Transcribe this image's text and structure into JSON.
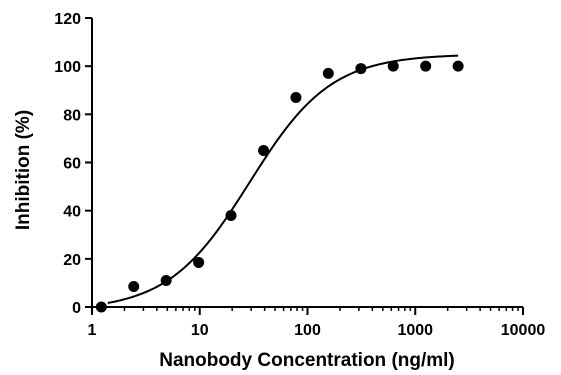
{
  "chart_data": {
    "type": "scatter",
    "title": "",
    "xlabel": "Nanobody Concentration (ng/ml)",
    "ylabel": "Inhibition (%)",
    "x_scale": "log",
    "xlim": [
      1,
      10000
    ],
    "ylim": [
      0,
      120
    ],
    "x_ticks": [
      1,
      10,
      100,
      1000,
      10000
    ],
    "x_tick_labels": [
      "1",
      "10",
      "100",
      "1000",
      "10000"
    ],
    "y_ticks": [
      0,
      20,
      40,
      60,
      80,
      100,
      120
    ],
    "y_tick_labels": [
      "0",
      "20",
      "40",
      "60",
      "80",
      "100",
      "120"
    ],
    "grid": false,
    "legend": "none",
    "colors": {
      "points": "#000000",
      "curve": "#000000",
      "axes": "#000000"
    },
    "series": [
      {
        "x": [
          1.22,
          2.44,
          4.88,
          9.77,
          19.5,
          39.1,
          78.1,
          156,
          313,
          625,
          1250,
          2500
        ],
        "y": [
          0,
          8.5,
          11,
          18.5,
          38,
          65,
          87,
          97,
          99,
          100,
          100,
          100
        ]
      }
    ],
    "fit_curve": {
      "model": "four-parameter logistic",
      "bottom": -1.5,
      "top": 105,
      "ec50": 29,
      "hill": 1.15,
      "x_range": [
        1.4,
        2500
      ]
    }
  }
}
